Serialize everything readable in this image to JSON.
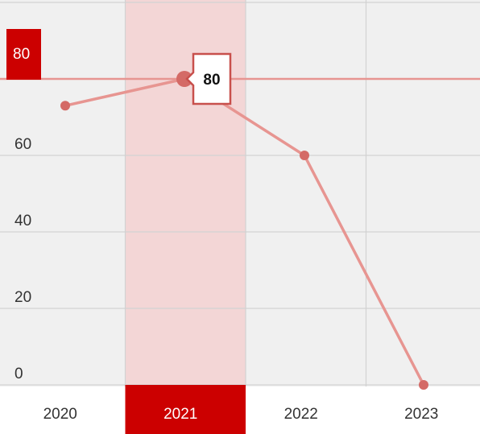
{
  "chart_data": {
    "type": "line",
    "categories": [
      "2020",
      "2021",
      "2022",
      "2023"
    ],
    "series": [
      {
        "values": [
          73,
          80,
          60,
          0
        ]
      }
    ],
    "y_ticks": [
      "0",
      "20",
      "40",
      "60"
    ],
    "ylim": [
      0,
      100
    ],
    "grid": true,
    "highlight": {
      "category": "2021",
      "value": 80,
      "value_label": "80",
      "axis_label": "80"
    },
    "colors": {
      "line": "#e79591",
      "marker": "#d46a66",
      "highlight_band": "#f3d6d6",
      "highlight_label": "#cc0000",
      "plot_bg": "#f0f0f0",
      "grid": "#d2d2d2"
    }
  }
}
